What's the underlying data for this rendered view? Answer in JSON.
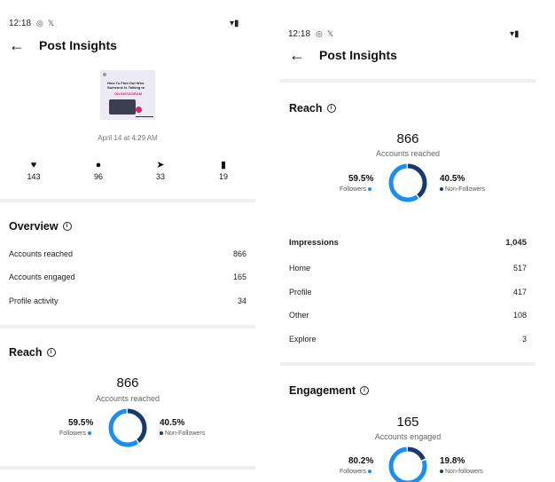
{
  "status": {
    "time": "12:18"
  },
  "header": {
    "title": "Post Insights"
  },
  "post": {
    "thumb_title": "How To Find Out Who Someone Is Talking to",
    "thumb_sub": "ON INSTAGRAM",
    "date": "April 14 at 4:29 AM"
  },
  "stats": [
    {
      "icon": "heart-icon",
      "value": "143"
    },
    {
      "icon": "comment-icon",
      "value": "96"
    },
    {
      "icon": "share-icon",
      "value": "33"
    },
    {
      "icon": "bookmark-icon",
      "value": "19"
    }
  ],
  "overview": {
    "title": "Overview",
    "rows": [
      {
        "label": "Accounts reached",
        "value": "866"
      },
      {
        "label": "Accounts engaged",
        "value": "165"
      },
      {
        "label": "Profile activity",
        "value": "34"
      }
    ]
  },
  "reach": {
    "title": "Reach",
    "value": "866",
    "label": "Accounts reached",
    "followers_pct": "59.5%",
    "followers_label": "Followers",
    "followers_fraction": 0.595,
    "nonfollowers_pct": "40.5%",
    "nonfollowers_label": "Non-Followers"
  },
  "impressions": {
    "label": "Impressions",
    "value": "1,045",
    "rows": [
      {
        "label": "Home",
        "value": "517"
      },
      {
        "label": "Profile",
        "value": "417"
      },
      {
        "label": "Other",
        "value": "108"
      },
      {
        "label": "Explore",
        "value": "3"
      }
    ]
  },
  "engagement": {
    "title": "Engagement",
    "value": "165",
    "label": "Accounts engaged",
    "followers_pct": "80.2%",
    "followers_label": "Followers",
    "followers_fraction": 0.802,
    "nonfollowers_pct": "19.8%",
    "nonfollowers_label": "Non-followers"
  },
  "colors": {
    "followers": "#1b8ff0",
    "nonfollowers": "#163a6b"
  }
}
